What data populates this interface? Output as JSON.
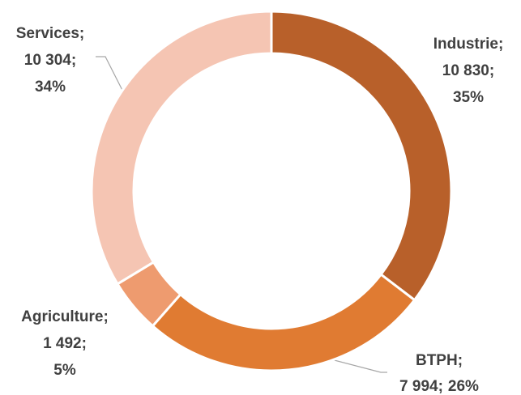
{
  "chart_data": {
    "type": "donut",
    "categories": [
      "Industrie",
      "BTPH",
      "Agriculture",
      "Services"
    ],
    "values": [
      10830,
      7994,
      1492,
      10304
    ],
    "value_labels": [
      "10 830",
      "7 994",
      "1 492",
      "10 304"
    ],
    "percentages": [
      {
        "value": 35,
        "label": "35%"
      },
      {
        "value": 26,
        "label": "26%"
      },
      {
        "value": 5,
        "label": "5%"
      },
      {
        "value": 34,
        "label": "34%"
      }
    ],
    "label_separator": ";",
    "colors": [
      "#B8602A",
      "#E07B32",
      "#EE9B6F",
      "#F5C5B3"
    ]
  }
}
